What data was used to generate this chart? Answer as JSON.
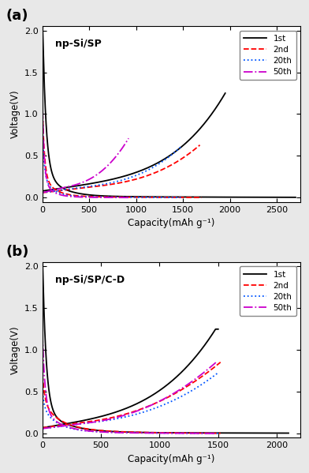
{
  "panel_a": {
    "title": "np-Si/SP",
    "xlim": [
      0,
      2750
    ],
    "ylim": [
      -0.05,
      2.05
    ],
    "xticks": [
      0,
      500,
      1000,
      1500,
      2000,
      2500
    ],
    "yticks": [
      0.0,
      0.5,
      1.0,
      1.5,
      2.0
    ],
    "xlabel": "Capacity(mAh g⁻¹)",
    "ylabel": "Voltage(V)"
  },
  "panel_b": {
    "title": "np-Si/SP/C-D",
    "xlim": [
      0,
      2200
    ],
    "ylim": [
      -0.05,
      2.05
    ],
    "xticks": [
      0,
      500,
      1000,
      1500,
      2000
    ],
    "yticks": [
      0.0,
      0.5,
      1.0,
      1.5,
      2.0
    ],
    "xlabel": "Capacity(mAh g⁻¹)",
    "ylabel": "Voltage(V)"
  },
  "colors": {
    "1st": "#000000",
    "2nd": "#FF0000",
    "20th": "#0055FF",
    "50th": "#CC00CC"
  },
  "linestyles": {
    "1st": "-",
    "2nd": "--",
    "20th": ":",
    "50th": "-."
  },
  "legend_labels": [
    "1st",
    "2nd",
    "20th",
    "50th"
  ],
  "bg_color": "#e8e8e8"
}
